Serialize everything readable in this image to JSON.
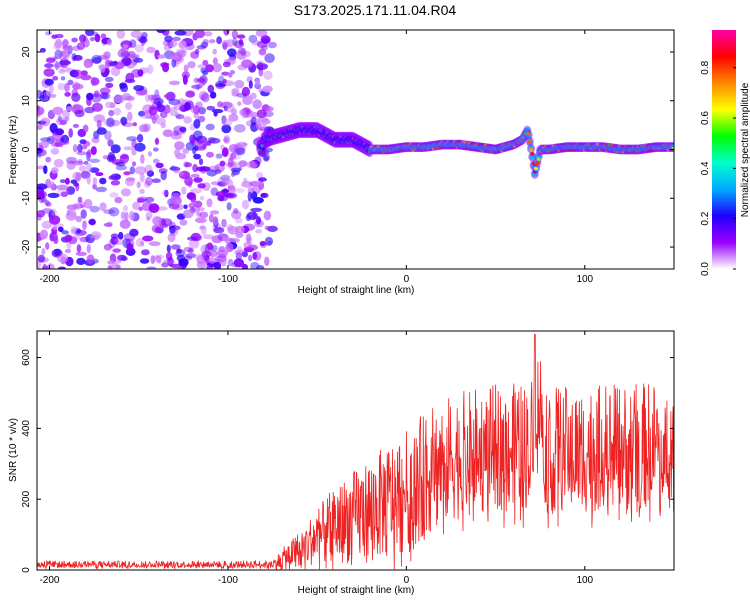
{
  "title": "S173.2025.171.11.04.R04",
  "chart_data": [
    {
      "type": "heatmap",
      "xlabel": "Height of straight line (km)",
      "ylabel": "Frequency (Hz)",
      "xlim": [
        -207,
        150
      ],
      "ylim": [
        -24.5,
        24.5
      ],
      "x_ticks": [
        -200,
        -100,
        0,
        100
      ],
      "y_ticks": [
        -20,
        -10,
        0,
        10,
        20
      ],
      "colorbar": {
        "label": "Normalized spectral amplitude",
        "range": [
          0.0,
          0.95
        ],
        "ticks": [
          0.0,
          0.2,
          0.4,
          0.6,
          0.8
        ],
        "colormap": [
          "#ffffff",
          "#9a00ff",
          "#2000ff",
          "#00aaff",
          "#00ffcc",
          "#00ff00",
          "#ffff00",
          "#ff8800",
          "#ff0000",
          "#ff00aa"
        ]
      },
      "features": {
        "noise_region_x": [
          -207,
          -75
        ],
        "signal_track_freq": [
          [
            -80,
            2
          ],
          [
            -70,
            3
          ],
          [
            -60,
            4
          ],
          [
            -50,
            4
          ],
          [
            -40,
            2
          ],
          [
            -30,
            2
          ],
          [
            -20,
            0
          ],
          [
            -10,
            0
          ],
          [
            0,
            0.5
          ],
          [
            10,
            0.5
          ],
          [
            20,
            1
          ],
          [
            30,
            1
          ],
          [
            40,
            0.5
          ],
          [
            50,
            0
          ],
          [
            60,
            1
          ],
          [
            65,
            2
          ],
          [
            68,
            4
          ],
          [
            70,
            0
          ],
          [
            72,
            -5
          ],
          [
            75,
            0
          ],
          [
            80,
            0
          ],
          [
            90,
            0.5
          ],
          [
            100,
            0.5
          ],
          [
            110,
            0.5
          ],
          [
            120,
            0
          ],
          [
            130,
            0
          ],
          [
            140,
            0.5
          ],
          [
            150,
            0.5
          ]
        ]
      }
    },
    {
      "type": "line",
      "xlabel": "Height of straight line (km)",
      "ylabel": "SNR (10 * v/v)",
      "xlim": [
        -207,
        150
      ],
      "ylim": [
        0,
        675
      ],
      "x_ticks": [
        -200,
        -100,
        0,
        100
      ],
      "y_ticks": [
        0,
        200,
        400,
        600
      ],
      "color": "#ee2222",
      "series": [
        {
          "x": [
            -207,
            -150,
            -100,
            -75,
            -70,
            -60,
            -50,
            -40,
            -30,
            -20,
            -10,
            0,
            10,
            20,
            30,
            40,
            50,
            60,
            70,
            72,
            80,
            90,
            100,
            110,
            120,
            130,
            140,
            150
          ],
          "y": [
            18,
            18,
            18,
            18,
            35,
            70,
            110,
            150,
            175,
            200,
            230,
            260,
            300,
            340,
            360,
            370,
            380,
            385,
            385,
            560,
            375,
            375,
            375,
            380,
            380,
            385,
            390,
            380
          ],
          "spread": [
            10,
            10,
            10,
            12,
            30,
            50,
            80,
            110,
            130,
            150,
            160,
            170,
            180,
            180,
            180,
            180,
            180,
            180,
            180,
            180,
            180,
            180,
            180,
            180,
            180,
            180,
            180,
            180
          ]
        }
      ]
    }
  ]
}
